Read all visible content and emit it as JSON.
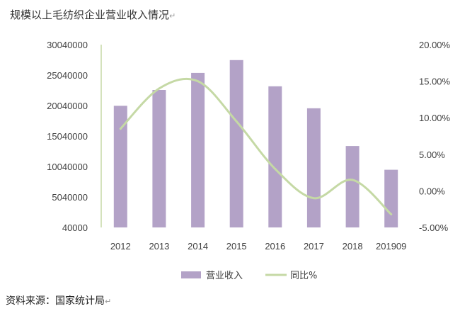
{
  "title": "规模以上毛纺织企业营业收入情况",
  "title_mark": "↵",
  "source": "资料来源：国家统计局",
  "source_mark": "↵",
  "chart_data": {
    "type": "bar",
    "title": "规模以上毛纺织企业营业收入情况",
    "categories": [
      "2012",
      "2013",
      "2014",
      "2015",
      "2016",
      "2017",
      "2018",
      "201909"
    ],
    "series": [
      {
        "name": "营业收入",
        "type": "bar",
        "axis": "left",
        "color": "#b3a2c7",
        "values": [
          20000000,
          22600000,
          25400000,
          27500000,
          23200000,
          19600000,
          13400000,
          9500000
        ]
      },
      {
        "name": "同比%",
        "type": "line",
        "axis": "right",
        "color": "#c5d9a5",
        "smooth": true,
        "values": [
          8.5,
          14.0,
          15.0,
          9.5,
          3.0,
          -1.0,
          1.5,
          -3.2
        ]
      }
    ],
    "left_axis": {
      "min": 40000,
      "max": 30040000,
      "ticks": [
        40000,
        5040000,
        10040000,
        15040000,
        20040000,
        25040000,
        30040000
      ],
      "tick_labels": [
        "40000",
        "5040000",
        "10040000",
        "15040000",
        "20040000",
        "25040000",
        "30040000"
      ]
    },
    "right_axis": {
      "min": -5,
      "max": 20,
      "ticks": [
        -5,
        0,
        5,
        10,
        15,
        20
      ],
      "tick_labels": [
        "-5.00%",
        "0.00%",
        "5.00%",
        "10.00%",
        "15.00%",
        "20.00%"
      ]
    },
    "grid": false,
    "legend": {
      "position": "bottom",
      "entries": [
        "营业收入",
        "同比%"
      ]
    }
  }
}
